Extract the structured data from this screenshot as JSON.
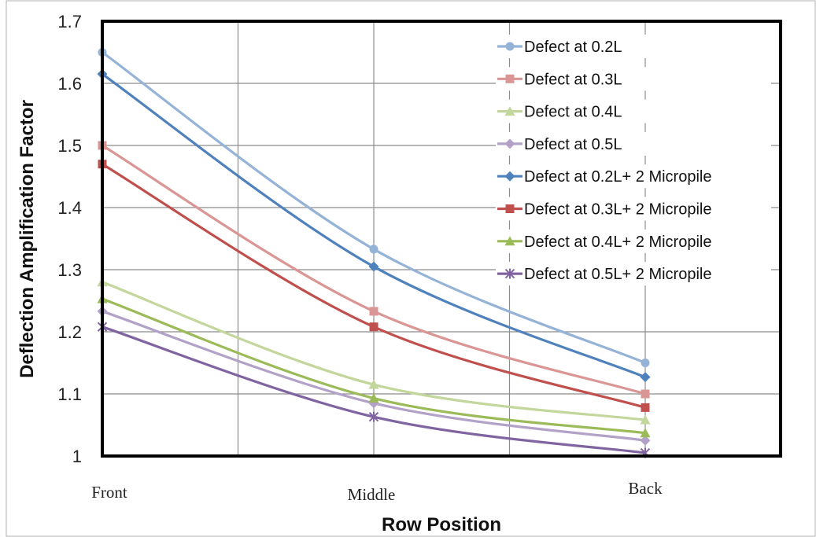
{
  "chart_data": {
    "type": "line",
    "title": "",
    "xlabel": "Row Position",
    "ylabel": "Deflection Amplification Factor",
    "categories": [
      "Front",
      "Middle",
      "Back"
    ],
    "ylim": [
      1,
      1.7
    ],
    "yticks": [
      "1",
      "1.1",
      "1.2",
      "1.3",
      "1.4",
      "1.5",
      "1.6",
      "1.7"
    ],
    "grid": true,
    "legend_position": "top-right",
    "series": [
      {
        "name": "Defect at 0.2L",
        "values": [
          1.65,
          1.333,
          1.15
        ],
        "color": "#95b3d7",
        "marker": "circle"
      },
      {
        "name": "Defect at 0.3L",
        "values": [
          1.5,
          1.233,
          1.1
        ],
        "color": "#d99694",
        "marker": "square"
      },
      {
        "name": "Defect at 0.4L",
        "values": [
          1.28,
          1.115,
          1.058
        ],
        "color": "#c3d69b",
        "marker": "triangle"
      },
      {
        "name": "Defect at 0.5L",
        "values": [
          1.233,
          1.085,
          1.025
        ],
        "color": "#b3a2c7",
        "marker": "diamond"
      },
      {
        "name": "Defect at 0.2L+ 2 Micropile",
        "values": [
          1.615,
          1.305,
          1.127
        ],
        "color": "#4f81bd",
        "marker": "diamond"
      },
      {
        "name": "Defect at 0.3L+ 2 Micropile",
        "values": [
          1.47,
          1.208,
          1.078
        ],
        "color": "#c0504d",
        "marker": "square"
      },
      {
        "name": "Defect at 0.4L+ 2 Micropile",
        "values": [
          1.253,
          1.093,
          1.037
        ],
        "color": "#9bbb59",
        "marker": "triangle"
      },
      {
        "name": "Defect at 0.5L+ 2 Micropile",
        "values": [
          1.208,
          1.063,
          1.005
        ],
        "color": "#8064a2",
        "marker": "star"
      }
    ]
  }
}
